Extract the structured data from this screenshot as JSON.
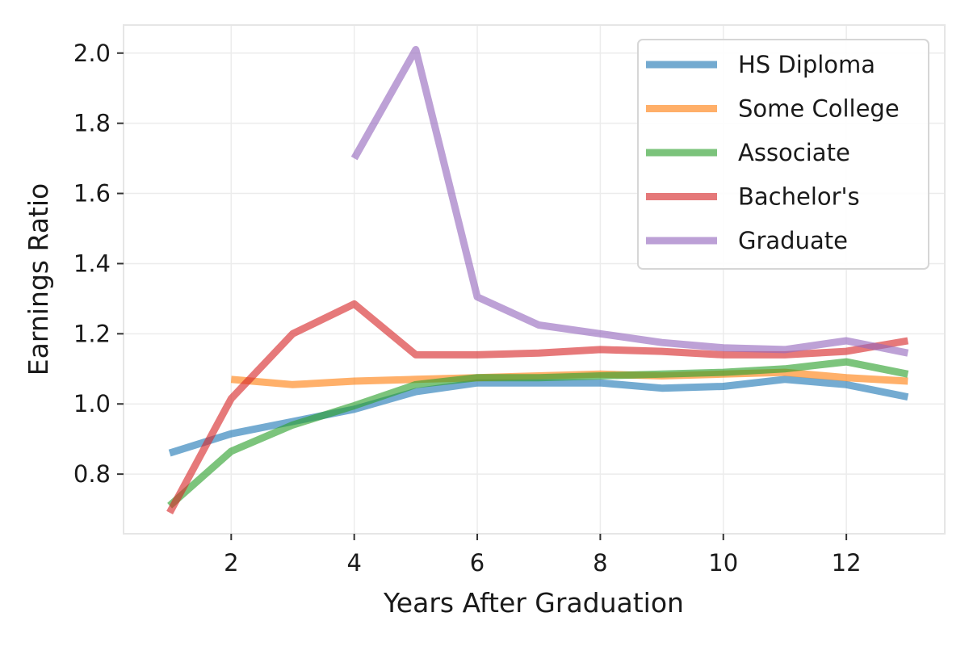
{
  "chart_data": {
    "type": "line",
    "title": "",
    "xlabel": "Years After Graduation",
    "ylabel": "Earnings Ratio",
    "xlim": [
      0.25,
      13.6
    ],
    "ylim": [
      0.63,
      2.08
    ],
    "xticks": [
      2,
      4,
      6,
      8,
      10,
      12
    ],
    "yticks": [
      0.8,
      1.0,
      1.2,
      1.4,
      1.6,
      1.8,
      2.0
    ],
    "xtick_labels": [
      "2",
      "4",
      "6",
      "8",
      "10",
      "12"
    ],
    "ytick_labels": [
      "0.8",
      "1.0",
      "1.2",
      "1.4",
      "1.6",
      "1.8",
      "2.0"
    ],
    "grid": true,
    "legend_position": "top-right",
    "series": [
      {
        "name": "HS Diploma",
        "color": "#1f77b4",
        "x": [
          1,
          2,
          3,
          4,
          5,
          6,
          7,
          8,
          9,
          10,
          11,
          12,
          13
        ],
        "y": [
          0.86,
          0.915,
          0.95,
          0.985,
          1.035,
          1.06,
          1.06,
          1.06,
          1.045,
          1.05,
          1.07,
          1.055,
          1.02
        ]
      },
      {
        "name": "Some College",
        "color": "#ff7f0e",
        "x": [
          2,
          3,
          4,
          5,
          6,
          7,
          8,
          9,
          10,
          11,
          12,
          13
        ],
        "y": [
          1.07,
          1.055,
          1.065,
          1.07,
          1.075,
          1.08,
          1.085,
          1.08,
          1.085,
          1.09,
          1.075,
          1.065
        ]
      },
      {
        "name": "Associate",
        "color": "#2ca02c",
        "x": [
          1,
          2,
          3,
          4,
          5,
          6,
          7,
          8,
          9,
          10,
          11,
          12,
          13
        ],
        "y": [
          0.71,
          0.865,
          0.94,
          0.995,
          1.055,
          1.075,
          1.075,
          1.08,
          1.085,
          1.09,
          1.1,
          1.12,
          1.085
        ]
      },
      {
        "name": "Bachelor's",
        "color": "#d62728",
        "x": [
          1,
          2,
          3,
          4,
          5,
          6,
          7,
          8,
          9,
          10,
          11,
          12,
          13
        ],
        "y": [
          0.69,
          1.015,
          1.2,
          1.285,
          1.14,
          1.14,
          1.145,
          1.155,
          1.15,
          1.14,
          1.14,
          1.15,
          1.18
        ]
      },
      {
        "name": "Graduate",
        "color": "#9467bd",
        "x": [
          4,
          5,
          6,
          7,
          8,
          9,
          10,
          11,
          12,
          13
        ],
        "y": [
          1.7,
          2.01,
          1.305,
          1.225,
          1.2,
          1.175,
          1.16,
          1.155,
          1.18,
          1.145
        ]
      }
    ]
  }
}
